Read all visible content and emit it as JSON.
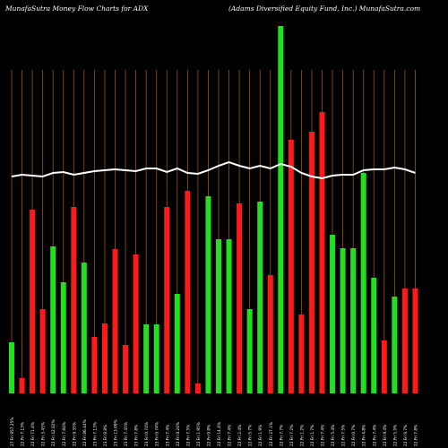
{
  "header": {
    "left": "MunafaSutra  Money Flow  Charts for ADX",
    "right": "(Adams Diversified Equity Fund, Inc.) MunafaSutra.com"
  },
  "chart_data": {
    "type": "bar",
    "title": "MunafaSutra  Money Flow  Charts for ADX",
    "subtitle": "(Adams Diversified Equity Fund, Inc.) MunafaSutra.com",
    "colors": {
      "up": "#21e021",
      "down": "#ff1a1a",
      "line": "#ffffff",
      "grid": "#a0520f",
      "background": "#000000"
    },
    "categories": [
      "12/19/2024",
      "11/19/2024",
      "10/21/2024",
      "09/20/2024",
      "08/21/2024",
      "07/22/2024",
      "06/21/2024",
      "05/22/2024",
      "04/23/2024",
      "03/21/2024",
      "02/20/2024",
      "01/19/2024",
      "12/19/2023",
      "11/20/2023",
      "10/20/2023",
      "09/20/2023",
      "08/21/2023",
      "07/21/2023",
      "06/21/2023",
      "05/22/2023",
      "04/21/2023",
      "03/22/2023",
      "02/21/2023",
      "01/20/2023",
      "12/20/2022",
      "11/18/2022",
      "10/19/2022",
      "09/20/2022",
      "08/19/2022",
      "07/20/2022",
      "06/21/2022",
      "05/20/2022",
      "04/20/2022",
      "03/21/2022",
      "02/18/2022",
      "01/19/2022",
      "12/17/2021",
      "11/17/2021",
      "10/19/2021",
      "09/20/2021"
    ],
    "x_tick_labels": [
      "27 Fri 957.25%",
      "22 Fri 7.13%",
      "22 Fri 71.4%",
      "22 Fri 3.45%",
      "22 Fri 42.82%",
      "22 Fri 7.84%",
      "22 Fri 9.35%",
      "22 Fri 86.44%",
      "23 Fri 7.13%",
      "23 Fri 9.8%",
      "23 Fri 13.09%",
      "23 Fri 7.45%",
      "23 Fri 7.8%",
      "23 Fri 0.74%",
      "23 Fri 0.74%",
      "23 Fri 7.4%",
      "22 Fri 0.24%",
      "22 Fri 7.5%",
      "22 Fri 1.95%",
      "22 Fri 9.8%",
      "22 Fri 14.4%",
      "22 Fri 7.4%",
      "22 Fri 2.4%",
      "22 Fri 5.7%",
      "22 Fri 1.9%",
      "22 Fri 27.1%",
      "22 Fri 7.7%",
      "22 Fri 7.2%",
      "22 Fri 1.2%",
      "22 Fri 1.7%",
      "22 Fri 7.4%",
      "22 Fri 5.4%",
      "22 Fri 7.5%",
      "22 Fri 0.7%",
      "22 Fri 4.8%",
      "22 Fri 7.4%",
      "22 Fri 9.4%",
      "22 Fri 5.5%",
      "22 Fri 9.7%",
      "22 Fri 7.8%"
    ],
    "series": [
      {
        "values": [
          57,
          17,
          205,
          94,
          164,
          124,
          208,
          146,
          63,
          78,
          161,
          54,
          155,
          77,
          77,
          208,
          111,
          226,
          11,
          220,
          172,
          172,
          212,
          94,
          214,
          132,
          410,
          283,
          88,
          292,
          314,
          177,
          162,
          162,
          246,
          129,
          59,
          108,
          117,
          117
        ],
        "directions": [
          "up",
          "down",
          "down",
          "down",
          "up",
          "up",
          "down",
          "up",
          "down",
          "down",
          "down",
          "down",
          "down",
          "up",
          "up",
          "down",
          "up",
          "down",
          "down",
          "up",
          "up",
          "up",
          "down",
          "up",
          "up",
          "down",
          "up",
          "down",
          "down",
          "down",
          "down",
          "up",
          "up",
          "up",
          "up",
          "up",
          "down",
          "up",
          "down",
          "down"
        ]
      },
      {
        "type": "line",
        "values": [
          242,
          244,
          243,
          242,
          246,
          247,
          244,
          246,
          248,
          249,
          250,
          249,
          248,
          251,
          251,
          247,
          251,
          246,
          245,
          249,
          254,
          258,
          254,
          251,
          254,
          251,
          256,
          253,
          246,
          242,
          240,
          243,
          244,
          244,
          249,
          250,
          250,
          252,
          250,
          246
        ]
      }
    ],
    "ylim": [
      0,
      410
    ],
    "grid": "vertical"
  }
}
